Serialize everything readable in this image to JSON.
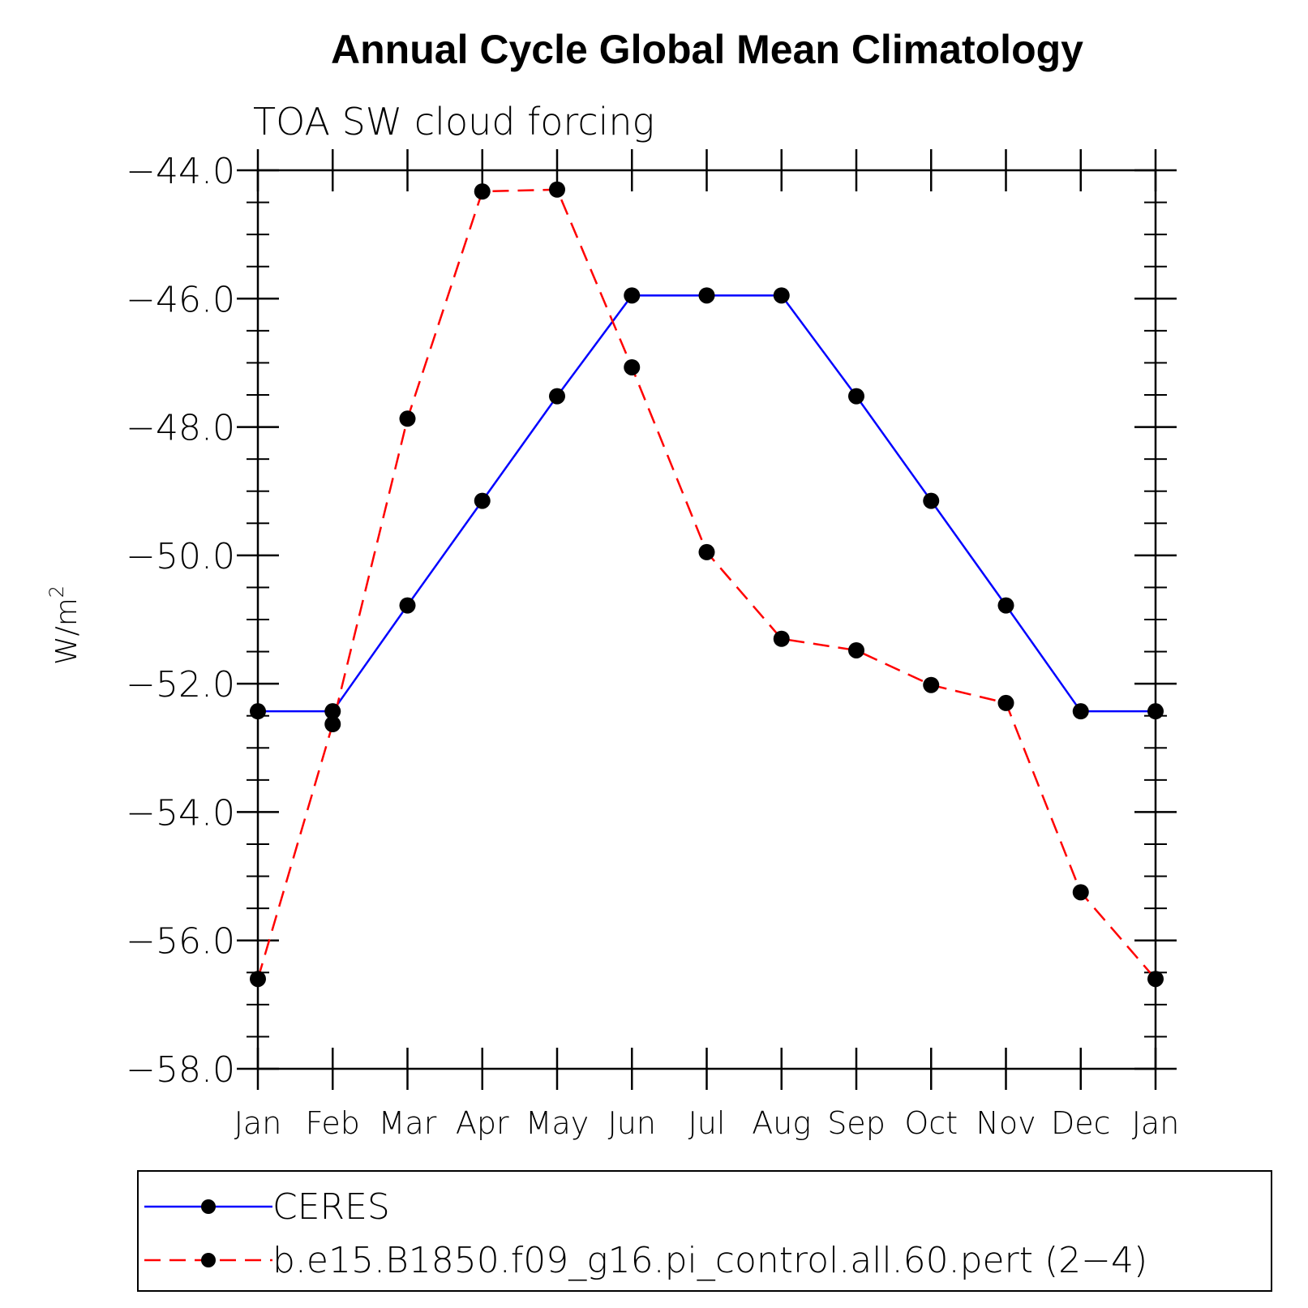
{
  "chart_data": {
    "type": "line",
    "title": "Annual Cycle Global Mean Climatology",
    "subtitle": "TOA SW cloud forcing",
    "xlabel": "",
    "ylabel_base": "W/m",
    "ylabel_sup": "2",
    "categories": [
      "Jan",
      "Feb",
      "Mar",
      "Apr",
      "May",
      "Jun",
      "Jul",
      "Aug",
      "Sep",
      "Oct",
      "Nov",
      "Dec",
      "Jan"
    ],
    "ylim": [
      -58.0,
      -44.0
    ],
    "yticks": [
      -44.0,
      -46.0,
      -48.0,
      -50.0,
      -52.0,
      -54.0,
      -56.0,
      -58.0
    ],
    "ytick_labels": [
      "−44.0",
      "−46.0",
      "−48.0",
      "−50.0",
      "−52.0",
      "−54.0",
      "−56.0",
      "−58.0"
    ],
    "grid": false,
    "legend_position": "bottom",
    "series": [
      {
        "name": "CERES",
        "color": "#0000ff",
        "style": "solid",
        "marker": "filled-circle",
        "values": [
          -52.43,
          -52.43,
          -50.78,
          -49.15,
          -47.52,
          -45.95,
          -45.95,
          -45.95,
          -47.52,
          -49.15,
          -50.78,
          -52.43,
          -52.43
        ]
      },
      {
        "name": "b.e15.B1850.f09_g16.pi_control.all.60.pert (2−4)",
        "color": "#ff0000",
        "style": "dashed",
        "marker": "filled-circle",
        "values": [
          -56.6,
          -52.63,
          -47.87,
          -44.33,
          -44.3,
          -47.07,
          -49.95,
          -51.3,
          -51.48,
          -52.02,
          -52.3,
          -55.25,
          -56.6
        ]
      }
    ]
  }
}
